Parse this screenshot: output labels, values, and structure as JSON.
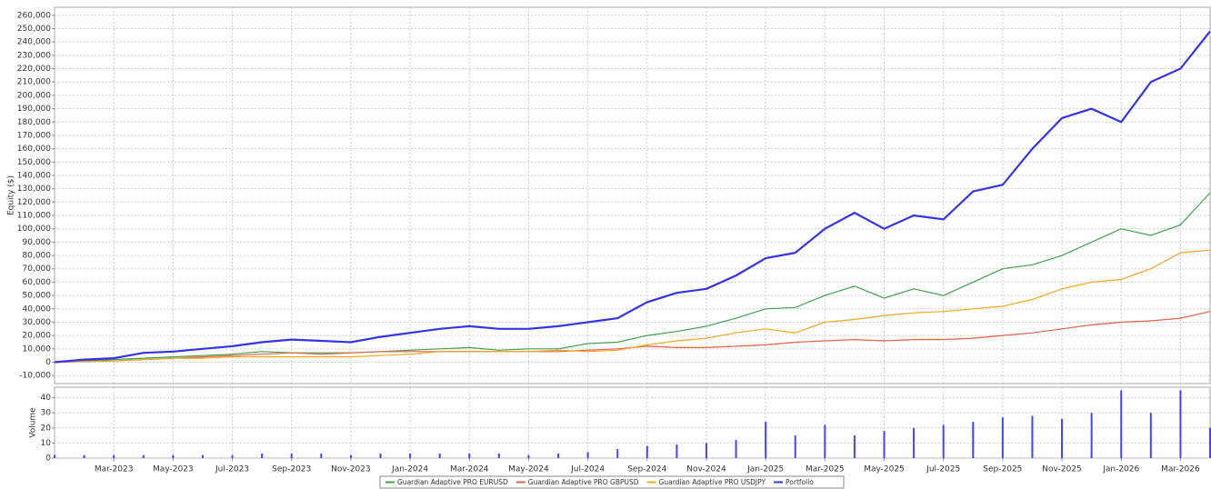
{
  "chart_data": [
    {
      "type": "line",
      "y_label": "Equity ($)",
      "grid": true,
      "legend": "bottom",
      "x": [
        "2023-01",
        "2023-02",
        "2023-03",
        "2023-04",
        "2023-05",
        "2023-06",
        "2023-07",
        "2023-08",
        "2023-09",
        "2023-10",
        "2023-11",
        "2023-12",
        "2024-01",
        "2024-02",
        "2024-03",
        "2024-04",
        "2024-05",
        "2024-06",
        "2024-07",
        "2024-08",
        "2024-09",
        "2024-10",
        "2024-11",
        "2024-12",
        "2025-01",
        "2025-02",
        "2025-03",
        "2025-04",
        "2025-05",
        "2025-06",
        "2025-07",
        "2025-08",
        "2025-09",
        "2025-10",
        "2025-11",
        "2025-12",
        "2026-01",
        "2026-02",
        "2026-03",
        "2026-04"
      ],
      "xlim": [
        "2023-01",
        "2026-04"
      ],
      "ylim": [
        -16000,
        266000
      ],
      "yticks": [
        {
          "value": -10000,
          "label": "-10,000"
        },
        0,
        {
          "value": 10000,
          "label": "10,000"
        },
        {
          "value": 20000,
          "label": "20,000"
        },
        {
          "value": 30000,
          "label": "30,000"
        },
        {
          "value": 40000,
          "label": "40,000"
        },
        {
          "value": 50000,
          "label": "50,000"
        },
        {
          "value": 60000,
          "label": "60,000"
        },
        {
          "value": 70000,
          "label": "70,000"
        },
        {
          "value": 80000,
          "label": "80,000"
        },
        {
          "value": 90000,
          "label": "90,000"
        },
        {
          "value": 100000,
          "label": "100,000"
        },
        {
          "value": 110000,
          "label": "110,000"
        },
        {
          "value": 120000,
          "label": "120,000"
        },
        {
          "value": 130000,
          "label": "130,000"
        },
        {
          "value": 140000,
          "label": "140,000"
        },
        {
          "value": 150000,
          "label": "150,000"
        },
        {
          "value": 160000,
          "label": "160,000"
        },
        {
          "value": 170000,
          "label": "170,000"
        },
        {
          "value": 180000,
          "label": "180,000"
        },
        {
          "value": 190000,
          "label": "190,000"
        },
        {
          "value": 200000,
          "label": "200,000"
        },
        {
          "value": 210000,
          "label": "210,000"
        },
        {
          "value": 220000,
          "label": "220,000"
        },
        {
          "value": 230000,
          "label": "230,000"
        },
        {
          "value": 240000,
          "label": "240,000"
        },
        {
          "value": 250000,
          "label": "250,000"
        },
        {
          "value": 260000,
          "label": "260,000"
        }
      ],
      "series": [
        {
          "name": "Guardian Adaptive PRO EURUSD",
          "color": "#3fa34d",
          "values": [
            0,
            1000,
            2000,
            3000,
            4000,
            5000,
            6000,
            8000,
            7000,
            7000,
            7000,
            8000,
            9000,
            10000,
            11000,
            9000,
            10000,
            10000,
            14000,
            15000,
            20000,
            23000,
            27000,
            33000,
            40000,
            41000,
            50000,
            57000,
            48000,
            55000,
            50000,
            60000,
            70000,
            73000,
            80000,
            90000,
            100000,
            95000,
            103000,
            127000
          ]
        },
        {
          "name": "Guardian Adaptive PRO GBPUSD",
          "color": "#e8604c",
          "values": [
            0,
            500,
            1000,
            2000,
            3000,
            4000,
            5000,
            6000,
            7000,
            6000,
            7000,
            8000,
            8000,
            8000,
            8000,
            8000,
            8000,
            8000,
            9000,
            10000,
            12000,
            11000,
            11000,
            12000,
            13000,
            15000,
            16000,
            17000,
            16000,
            17000,
            17000,
            18000,
            20000,
            22000,
            25000,
            28000,
            30000,
            31000,
            33000,
            38000
          ]
        },
        {
          "name": "Guardian Adaptive PRO USDJPY",
          "color": "#f5a623",
          "values": [
            0,
            500,
            1000,
            2000,
            3000,
            3000,
            4000,
            4000,
            4000,
            4000,
            4000,
            5000,
            6000,
            8000,
            8000,
            8000,
            8000,
            9000,
            8000,
            9000,
            13000,
            16000,
            18000,
            22000,
            25000,
            22000,
            30000,
            32000,
            35000,
            37000,
            38000,
            40000,
            42000,
            47000,
            55000,
            60000,
            62000,
            70000,
            82000,
            84000
          ]
        },
        {
          "name": "Portfolio",
          "color": "#3333ee",
          "values": [
            0,
            2000,
            3000,
            7000,
            8000,
            10000,
            12000,
            15000,
            17000,
            16000,
            15000,
            19000,
            22000,
            25000,
            27000,
            25000,
            25000,
            27000,
            30000,
            33000,
            45000,
            52000,
            55000,
            65000,
            78000,
            82000,
            100000,
            112000,
            100000,
            110000,
            107000,
            128000,
            133000,
            160000,
            183000,
            190000,
            180000,
            210000,
            220000,
            248000
          ]
        }
      ]
    },
    {
      "type": "bar",
      "y_label": "Volume",
      "grid": true,
      "color": "#4444ff",
      "x": [
        "2023-01",
        "2023-02",
        "2023-03",
        "2023-04",
        "2023-05",
        "2023-06",
        "2023-07",
        "2023-08",
        "2023-09",
        "2023-10",
        "2023-11",
        "2023-12",
        "2024-01",
        "2024-02",
        "2024-03",
        "2024-04",
        "2024-05",
        "2024-06",
        "2024-07",
        "2024-08",
        "2024-09",
        "2024-10",
        "2024-11",
        "2024-12",
        "2025-01",
        "2025-02",
        "2025-03",
        "2025-04",
        "2025-05",
        "2025-06",
        "2025-07",
        "2025-08",
        "2025-09",
        "2025-10",
        "2025-11",
        "2025-12",
        "2026-01",
        "2026-02",
        "2026-03",
        "2026-04"
      ],
      "values": [
        2,
        2,
        2,
        2,
        2,
        2,
        2,
        3,
        3,
        3,
        2,
        3,
        3,
        3,
        3,
        3,
        2,
        3,
        4,
        6,
        8,
        9,
        10,
        12,
        24,
        15,
        22,
        15,
        18,
        20,
        22,
        24,
        27,
        28,
        26,
        30,
        45,
        30,
        45,
        20
      ],
      "xlim": [
        "2023-01",
        "2026-04"
      ],
      "ylim": [
        0,
        47
      ],
      "yticks": [
        0,
        10,
        20,
        30,
        40
      ],
      "xticks": [
        {
          "value": "2023-03",
          "label": "Mar-2023"
        },
        {
          "value": "2023-05",
          "label": "May-2023"
        },
        {
          "value": "2023-07",
          "label": "Jul-2023"
        },
        {
          "value": "2023-09",
          "label": "Sep-2023"
        },
        {
          "value": "2023-11",
          "label": "Nov-2023"
        },
        {
          "value": "2024-01",
          "label": "Jan-2024"
        },
        {
          "value": "2024-03",
          "label": "Mar-2024"
        },
        {
          "value": "2024-05",
          "label": "May-2024"
        },
        {
          "value": "2024-07",
          "label": "Jul-2024"
        },
        {
          "value": "2024-09",
          "label": "Sep-2024"
        },
        {
          "value": "2024-11",
          "label": "Nov-2024"
        },
        {
          "value": "2025-01",
          "label": "Jan-2025"
        },
        {
          "value": "2025-03",
          "label": "Mar-2025"
        },
        {
          "value": "2025-05",
          "label": "May-2025"
        },
        {
          "value": "2025-07",
          "label": "Jul-2025"
        },
        {
          "value": "2025-09",
          "label": "Sep-2025"
        },
        {
          "value": "2025-11",
          "label": "Nov-2025"
        },
        {
          "value": "2026-01",
          "label": "Jan-2026"
        },
        {
          "value": "2026-03",
          "label": "Mar-2026"
        }
      ]
    }
  ]
}
